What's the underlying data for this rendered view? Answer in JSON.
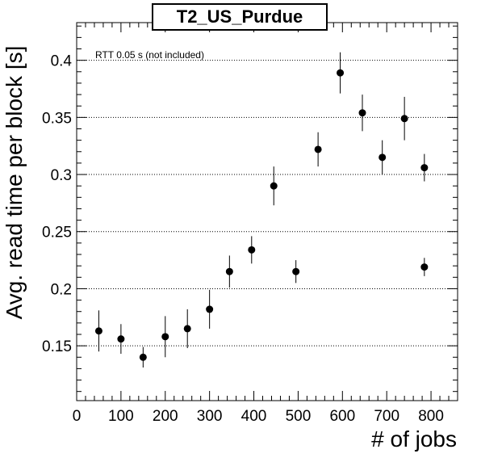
{
  "chart_data": {
    "type": "scatter",
    "title": "T2_US_Purdue",
    "xlabel": "# of jobs",
    "ylabel": "Avg. read time per block [s]",
    "annotation": "RTT 0.05 s (not included)",
    "xlim": [
      0,
      860
    ],
    "ylim": [
      0.102,
      0.433
    ],
    "xticks": [
      0,
      100,
      200,
      300,
      400,
      500,
      600,
      700,
      800
    ],
    "yticks": [
      0.15,
      0.2,
      0.25,
      0.3,
      0.35,
      0.4
    ],
    "ytick_labels": [
      "0.15",
      "0.2",
      "0.25",
      "0.3",
      "0.35",
      "0.4"
    ],
    "grid": "horizontal dotted",
    "points": [
      {
        "x": 50,
        "y": 0.163,
        "err": 0.018
      },
      {
        "x": 100,
        "y": 0.156,
        "err": 0.013
      },
      {
        "x": 150,
        "y": 0.14,
        "err": 0.009
      },
      {
        "x": 200,
        "y": 0.158,
        "err": 0.018
      },
      {
        "x": 250,
        "y": 0.165,
        "err": 0.017
      },
      {
        "x": 300,
        "y": 0.182,
        "err": 0.017
      },
      {
        "x": 345,
        "y": 0.215,
        "err": 0.014
      },
      {
        "x": 395,
        "y": 0.234,
        "err": 0.012
      },
      {
        "x": 445,
        "y": 0.29,
        "err": 0.017
      },
      {
        "x": 495,
        "y": 0.215,
        "err": 0.01
      },
      {
        "x": 545,
        "y": 0.322,
        "err": 0.015
      },
      {
        "x": 595,
        "y": 0.389,
        "err": 0.018
      },
      {
        "x": 645,
        "y": 0.354,
        "err": 0.016
      },
      {
        "x": 690,
        "y": 0.315,
        "err": 0.015
      },
      {
        "x": 740,
        "y": 0.349,
        "err": 0.019
      },
      {
        "x": 785,
        "y": 0.306,
        "err": 0.012
      },
      {
        "x": 785,
        "y": 0.219,
        "err": 0.008
      }
    ]
  }
}
